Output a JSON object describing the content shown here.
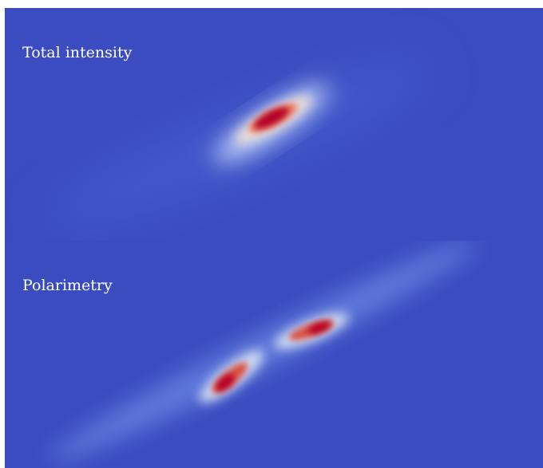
{
  "panels": [
    {
      "label": "Total intensity"
    },
    {
      "label": "Polarimetry"
    }
  ]
}
